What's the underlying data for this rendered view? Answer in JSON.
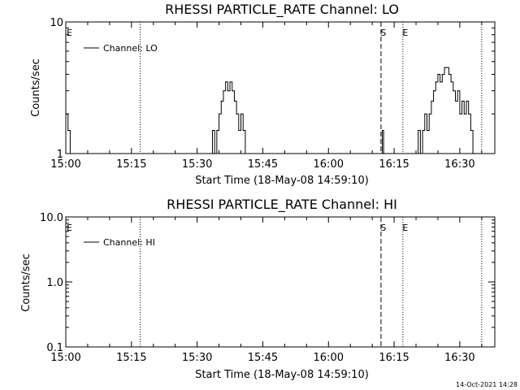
{
  "timestamp": "14-Oct-2021 14:28",
  "chart_data": [
    {
      "type": "line",
      "title": "RHESSI PARTICLE_RATE Channel: LO",
      "xlabel": "Start Time (18-May-08 14:59:10)",
      "ylabel": "Counts/sec",
      "yscale": "log",
      "xlim": [
        "15:00",
        "16:38"
      ],
      "ylim": [
        1,
        10
      ],
      "x_ticks": [
        "15:00",
        "15:15",
        "15:30",
        "15:45",
        "16:00",
        "16:15",
        "16:30"
      ],
      "y_ticks": [
        "1",
        "10"
      ],
      "legend": {
        "label": "Channel: LO",
        "position": "top-left"
      },
      "markers": [
        {
          "label": "E",
          "time": "15:00",
          "style": "none"
        },
        {
          "label": "",
          "time": "15:17",
          "style": "dotted"
        },
        {
          "label": "S",
          "time": "16:12",
          "style": "dashed"
        },
        {
          "label": "E",
          "time": "16:17",
          "style": "dotted"
        },
        {
          "label": "",
          "time": "16:35",
          "style": "dotted"
        }
      ],
      "series": [
        {
          "name": "Channel: LO",
          "x": [
            "15:00",
            "15:00.5",
            "15:01",
            "15:33",
            "15:33.5",
            "15:34",
            "15:34.5",
            "15:35",
            "15:35.5",
            "15:36",
            "15:36.5",
            "15:37",
            "15:37.5",
            "15:38",
            "15:38.5",
            "15:39",
            "15:39.5",
            "15:40",
            "15:40.5",
            "15:41",
            "16:12",
            "16:12.3",
            "16:12.6",
            "16:13",
            "16:20",
            "16:20.5",
            "16:21",
            "16:21.5",
            "16:22",
            "16:22.5",
            "16:23",
            "16:23.5",
            "16:24",
            "16:24.5",
            "16:25",
            "16:25.5",
            "16:26",
            "16:26.5",
            "16:27",
            "16:27.5",
            "16:28",
            "16:28.5",
            "16:29",
            "16:29.5",
            "16:30",
            "16:30.5",
            "16:31",
            "16:31.5",
            "16:32",
            "16:32.5",
            "16:33",
            "16:33.5"
          ],
          "values": [
            2.0,
            1.5,
            1.0,
            1.0,
            1.5,
            1.0,
            1.5,
            2.0,
            2.5,
            3.0,
            3.5,
            3.0,
            3.5,
            3.0,
            2.5,
            2.0,
            1.5,
            2.0,
            1.5,
            1.0,
            1.0,
            1.5,
            1.0,
            1.0,
            1.0,
            1.5,
            1.0,
            1.5,
            2.0,
            1.5,
            2.0,
            2.5,
            3.0,
            3.5,
            4.0,
            3.5,
            4.0,
            4.5,
            4.5,
            4.0,
            3.5,
            3.0,
            2.5,
            3.0,
            2.0,
            2.5,
            2.0,
            2.5,
            2.0,
            1.5,
            1.0,
            1.0
          ]
        }
      ]
    },
    {
      "type": "line",
      "title": "RHESSI PARTICLE_RATE Channel: HI",
      "xlabel": "Start Time (18-May-08 14:59:10)",
      "ylabel": "Counts/sec",
      "yscale": "log",
      "xlim": [
        "15:00",
        "16:38"
      ],
      "ylim": [
        0.1,
        10.0
      ],
      "x_ticks": [
        "15:00",
        "15:15",
        "15:30",
        "15:45",
        "16:00",
        "16:15",
        "16:30"
      ],
      "y_ticks": [
        "0.1",
        "1.0",
        "10.0"
      ],
      "legend": {
        "label": "Channel: HI",
        "position": "top-left"
      },
      "markers": [
        {
          "label": "E",
          "time": "15:00",
          "style": "none"
        },
        {
          "label": "",
          "time": "15:17",
          "style": "dotted"
        },
        {
          "label": "S",
          "time": "16:12",
          "style": "dashed"
        },
        {
          "label": "E",
          "time": "16:17",
          "style": "dotted"
        },
        {
          "label": "",
          "time": "16:35",
          "style": "dotted"
        }
      ],
      "series": [
        {
          "name": "Channel: HI",
          "x": [],
          "values": []
        }
      ]
    }
  ]
}
